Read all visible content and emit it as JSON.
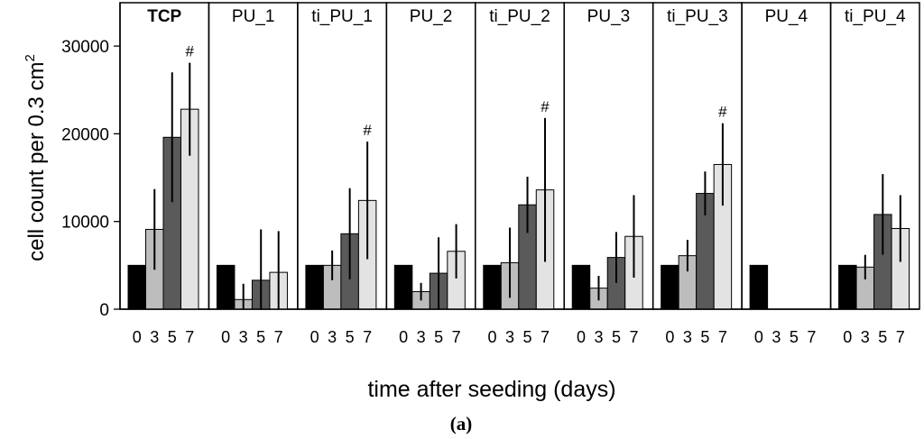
{
  "chart_data": {
    "type": "bar",
    "ylabel": "cell count per 0.3 cm",
    "ylabel_superscript": "2",
    "xlabel": "time after seeding (days)",
    "caption": "(a)",
    "ylim": [
      0,
      35000
    ],
    "yticks": [
      0,
      10000,
      20000,
      30000
    ],
    "ytick_labels": [
      "0",
      "10000",
      "20000",
      "30000"
    ],
    "categories": [
      "0",
      "3",
      "5",
      "7"
    ],
    "bar_colors": [
      "#000000",
      "#bdbdbd",
      "#5a5a5a",
      "#e3e3e3"
    ],
    "significance_marker": "#",
    "panels": [
      {
        "name": "TCP",
        "bold": true,
        "values": [
          5000,
          9100,
          19600,
          22800
        ],
        "errors": [
          null,
          4600,
          7400,
          5300
        ],
        "marked": [
          false,
          false,
          false,
          true
        ]
      },
      {
        "name": "PU_1",
        "bold": false,
        "values": [
          5000,
          1100,
          3300,
          4200
        ],
        "errors": [
          null,
          1800,
          5800,
          4700
        ],
        "marked": [
          false,
          false,
          false,
          false
        ]
      },
      {
        "name": "ti_PU_1",
        "bold": false,
        "values": [
          5000,
          5000,
          8600,
          12400
        ],
        "errors": [
          null,
          1700,
          5200,
          6700
        ],
        "marked": [
          false,
          false,
          false,
          true
        ]
      },
      {
        "name": "PU_2",
        "bold": false,
        "values": [
          5000,
          2000,
          4100,
          6600
        ],
        "errors": [
          null,
          1000,
          4100,
          3100
        ],
        "marked": [
          false,
          false,
          false,
          false
        ]
      },
      {
        "name": "ti_PU_2",
        "bold": false,
        "values": [
          5000,
          5300,
          11900,
          13600
        ],
        "errors": [
          null,
          4000,
          3200,
          8200
        ],
        "marked": [
          false,
          false,
          false,
          true
        ]
      },
      {
        "name": "PU_3",
        "bold": false,
        "values": [
          5000,
          2400,
          5900,
          8300
        ],
        "errors": [
          null,
          1400,
          2900,
          4700
        ],
        "marked": [
          false,
          false,
          false,
          false
        ]
      },
      {
        "name": "ti_PU_3",
        "bold": false,
        "values": [
          5000,
          6100,
          13200,
          16500
        ],
        "errors": [
          null,
          1800,
          2500,
          4700
        ],
        "marked": [
          false,
          false,
          false,
          true
        ]
      },
      {
        "name": "PU_4",
        "bold": false,
        "values": [
          5000,
          0,
          0,
          0
        ],
        "errors": [
          null,
          null,
          null,
          null
        ],
        "marked": [
          false,
          false,
          false,
          false
        ]
      },
      {
        "name": "ti_PU_4",
        "bold": false,
        "values": [
          5000,
          4800,
          10800,
          9200
        ],
        "errors": [
          null,
          1400,
          4600,
          3800
        ],
        "marked": [
          false,
          false,
          false,
          false
        ]
      }
    ]
  }
}
